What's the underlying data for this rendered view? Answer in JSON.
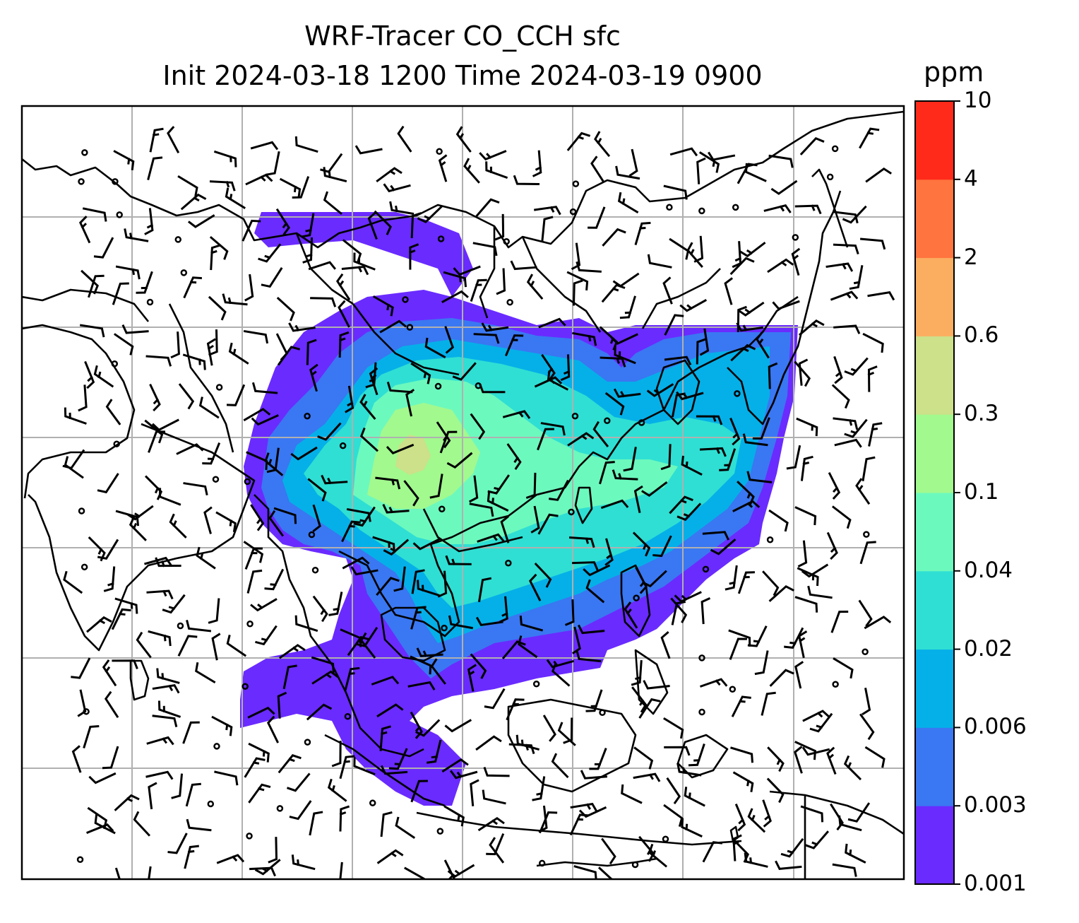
{
  "figure": {
    "title_line1": "WRF-Tracer CO_CCH sfc",
    "title_line2": "Init 2024-03-18 1200 Time 2024-03-19 0900"
  },
  "colorbar": {
    "unit": "ppm",
    "levels": [
      "0.001",
      "0.003",
      "0.006",
      "0.02",
      "0.04",
      "0.1",
      "0.3",
      "0.6",
      "2",
      "4",
      "10"
    ],
    "colors": [
      "#6a2bff",
      "#3a77f2",
      "#05b0e8",
      "#2fdfd3",
      "#6cf9be",
      "#a2f98e",
      "#cde08a",
      "#fcae60",
      "#ff743f",
      "#ff2a1a"
    ]
  },
  "map": {
    "gridlines": true,
    "ocean_color": "#ffffff",
    "coastline_color": "#000000",
    "grid_color": "#b0b0b0",
    "overlay": "wind barbs"
  }
}
